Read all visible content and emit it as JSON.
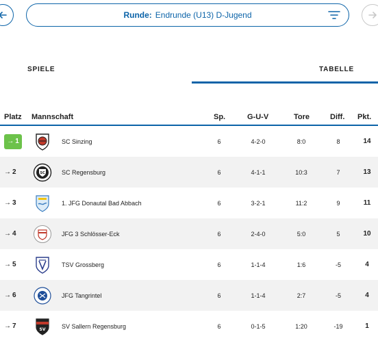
{
  "header": {
    "round_label": "Runde:",
    "round_value": "Endrunde (U13) D-Jugend"
  },
  "tabs": [
    {
      "label": "SPIELE",
      "active": false
    },
    {
      "label": "TABELLE",
      "active": true
    }
  ],
  "table": {
    "columns": {
      "platz": "Platz",
      "mannschaft": "Mannschaft",
      "sp": "Sp.",
      "guv": "G-U-V",
      "tore": "Tore",
      "diff": "Diff.",
      "pkt": "Pkt."
    },
    "rows": [
      {
        "rank": "1",
        "trend": "→",
        "team": "SC Sinzing",
        "sp": "6",
        "guv": "4-2-0",
        "tore": "8:0",
        "diff": "8",
        "pkt": "14",
        "logo": "sc-sinzing-crest"
      },
      {
        "rank": "2",
        "trend": "→",
        "team": "SC Regensburg",
        "sp": "6",
        "guv": "4-1-1",
        "tore": "10:3",
        "diff": "7",
        "pkt": "13",
        "logo": "sc-regensburg-crest"
      },
      {
        "rank": "3",
        "trend": "→",
        "team": "1. JFG Donautal Bad Abbach",
        "sp": "6",
        "guv": "3-2-1",
        "tore": "11:2",
        "diff": "9",
        "pkt": "11",
        "logo": "jfg-donautal-crest"
      },
      {
        "rank": "4",
        "trend": "→",
        "team": "JFG 3 Schlösser-Eck",
        "sp": "6",
        "guv": "2-4-0",
        "tore": "5:0",
        "diff": "5",
        "pkt": "10",
        "logo": "jfg-schloesser-crest"
      },
      {
        "rank": "5",
        "trend": "→",
        "team": "TSV Grossberg",
        "sp": "6",
        "guv": "1-1-4",
        "tore": "1:6",
        "diff": "-5",
        "pkt": "4",
        "logo": "tsv-grossberg-crest"
      },
      {
        "rank": "6",
        "trend": "→",
        "team": "JFG Tangrintel",
        "sp": "6",
        "guv": "1-1-4",
        "tore": "2:7",
        "diff": "-5",
        "pkt": "4",
        "logo": "jfg-tangrintel-crest"
      },
      {
        "rank": "7",
        "trend": "→",
        "team": "SV Sallern Regensburg",
        "sp": "6",
        "guv": "0-1-5",
        "tore": "1:20",
        "diff": "-19",
        "pkt": "1",
        "logo": "sv-sallern-crest"
      }
    ]
  },
  "colors": {
    "accent": "#0b63a8",
    "leader": "#6cc24a",
    "row_alt": "#f2f2f2"
  }
}
